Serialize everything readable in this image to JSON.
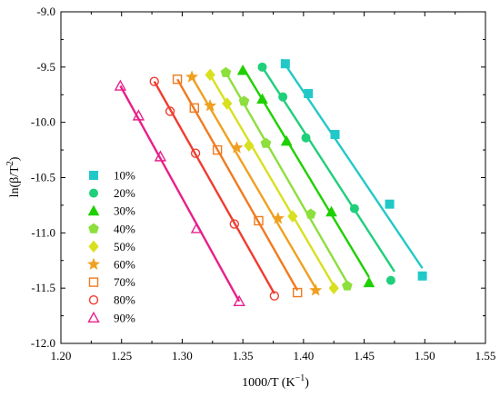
{
  "chart_data": {
    "type": "scatter",
    "title": "",
    "xlabel": "1000/T (K",
    "xlabel_sup": "−1",
    "xlabel_end": ")",
    "ylabel": "ln(β/T",
    "ylabel_sup": "2",
    "ylabel_end": ")",
    "xlim": [
      1.2,
      1.55
    ],
    "ylim": [
      -12.0,
      -9.0
    ],
    "xticks": [
      "1.20",
      "1.25",
      "1.30",
      "1.35",
      "1.40",
      "1.45",
      "1.50",
      "1.55"
    ],
    "yticks": [
      "-9.0",
      "-9.5",
      "-10.0",
      "-10.5",
      "-11.0",
      "-11.5",
      "-12.0"
    ],
    "grid": false,
    "legend_position": "left",
    "series": [
      {
        "name": "10%",
        "color": "#22c8c8",
        "marker": "square",
        "filled": true,
        "x": [
          1.385,
          1.404,
          1.426,
          1.471,
          1.498
        ],
        "y": [
          -9.47,
          -9.74,
          -10.11,
          -10.74,
          -11.39
        ],
        "fit_x": [
          1.382,
          1.498
        ],
        "fit_y": [
          -9.43,
          -11.32
        ]
      },
      {
        "name": "20%",
        "color": "#1fcf7a",
        "marker": "circle",
        "filled": true,
        "x": [
          1.366,
          1.383,
          1.402,
          1.442,
          1.472
        ],
        "y": [
          -9.5,
          -9.77,
          -10.14,
          -10.78,
          -11.43
        ],
        "fit_x": [
          1.366,
          1.475
        ],
        "fit_y": [
          -9.5,
          -11.35
        ]
      },
      {
        "name": "30%",
        "color": "#1fd000",
        "marker": "triangle",
        "filled": true,
        "x": [
          1.35,
          1.366,
          1.386,
          1.423,
          1.454
        ],
        "y": [
          -9.53,
          -9.79,
          -10.17,
          -10.81,
          -11.45
        ],
        "fit_x": [
          1.35,
          1.454
        ],
        "fit_y": [
          -9.5,
          -11.4
        ]
      },
      {
        "name": "40%",
        "color": "#8cdf3c",
        "marker": "pentagon",
        "filled": true,
        "x": [
          1.336,
          1.351,
          1.369,
          1.406,
          1.436
        ],
        "y": [
          -9.55,
          -9.81,
          -10.19,
          -10.83,
          -11.48
        ],
        "fit_x": [
          1.336,
          1.436
        ],
        "fit_y": [
          -9.55,
          -11.45
        ]
      },
      {
        "name": "50%",
        "color": "#d8e020",
        "marker": "diamond",
        "filled": true,
        "x": [
          1.323,
          1.337,
          1.355,
          1.391,
          1.425
        ],
        "y": [
          -9.57,
          -9.83,
          -10.21,
          -10.85,
          -11.5
        ],
        "fit_x": [
          1.323,
          1.425
        ],
        "fit_y": [
          -9.57,
          -11.48
        ]
      },
      {
        "name": "60%",
        "color": "#f0a020",
        "marker": "star",
        "filled": true,
        "x": [
          1.308,
          1.323,
          1.345,
          1.379,
          1.41
        ],
        "y": [
          -9.59,
          -9.85,
          -10.23,
          -10.87,
          -11.52
        ],
        "fit_x": [
          1.308,
          1.41
        ],
        "fit_y": [
          -9.59,
          -11.5
        ]
      },
      {
        "name": "70%",
        "color": "#f07a20",
        "marker": "square",
        "filled": false,
        "x": [
          1.296,
          1.31,
          1.329,
          1.363,
          1.395
        ],
        "y": [
          -9.61,
          -9.87,
          -10.25,
          -10.89,
          -11.54
        ],
        "fit_x": [
          1.296,
          1.395
        ],
        "fit_y": [
          -9.61,
          -11.52
        ]
      },
      {
        "name": "80%",
        "color": "#f03c30",
        "marker": "circle",
        "filled": false,
        "x": [
          1.277,
          1.29,
          1.311,
          1.343,
          1.376
        ],
        "y": [
          -9.63,
          -9.9,
          -10.28,
          -10.92,
          -11.57
        ],
        "fit_x": [
          1.277,
          1.376
        ],
        "fit_y": [
          -9.63,
          -11.55
        ]
      },
      {
        "name": "90%",
        "color": "#e8208a",
        "marker": "triangle",
        "filled": false,
        "x": [
          1.249,
          1.264,
          1.282,
          1.312,
          1.347
        ],
        "y": [
          -9.67,
          -9.94,
          -10.31,
          -10.96,
          -11.62
        ],
        "fit_x": [
          1.249,
          1.347
        ],
        "fit_y": [
          -9.67,
          -11.62
        ]
      }
    ]
  }
}
